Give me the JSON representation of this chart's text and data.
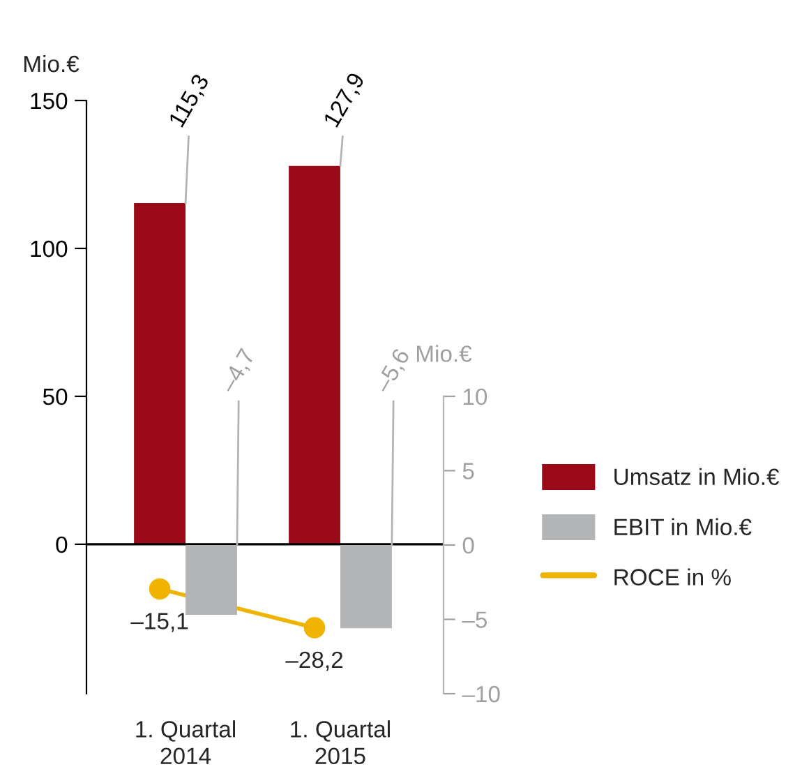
{
  "chart_data": {
    "type": "bar",
    "categories": [
      "1. Quartal\n2014",
      "1. Quartal\n2015"
    ],
    "series": [
      {
        "name": "Umsatz in Mio.€",
        "color": "#9b0a18",
        "values": [
          115.3,
          127.9
        ],
        "value_labels": [
          "115,3",
          "127,9"
        ]
      },
      {
        "name": "EBIT in Mio.€",
        "type": "bar",
        "color": "#b3b4b6",
        "axis": "y2",
        "values": [
          -4.7,
          -5.6
        ],
        "value_labels": [
          "–4,7",
          "–5,6"
        ]
      },
      {
        "name": "ROCE in %",
        "type": "line",
        "color": "#f0b400",
        "marker": "circle",
        "values": [
          -15.1,
          -28.2
        ],
        "value_labels": [
          "–15,1",
          "–28,2"
        ]
      }
    ],
    "ylabel": "Mio.€",
    "y2label": "Mio.€",
    "ylim": [
      -50.5,
      150
    ],
    "yticks": [
      0,
      50,
      100,
      150
    ],
    "y2lim": [
      -10,
      29.9
    ],
    "y2ticks": [
      {
        "value": -10,
        "label": "–10"
      },
      {
        "value": -5,
        "label": "–5"
      },
      0,
      5,
      10
    ],
    "ref_lines": [
      {
        "axis": "y",
        "value": 0,
        "color": "#000000"
      }
    ],
    "grid": false,
    "legend": "right"
  }
}
